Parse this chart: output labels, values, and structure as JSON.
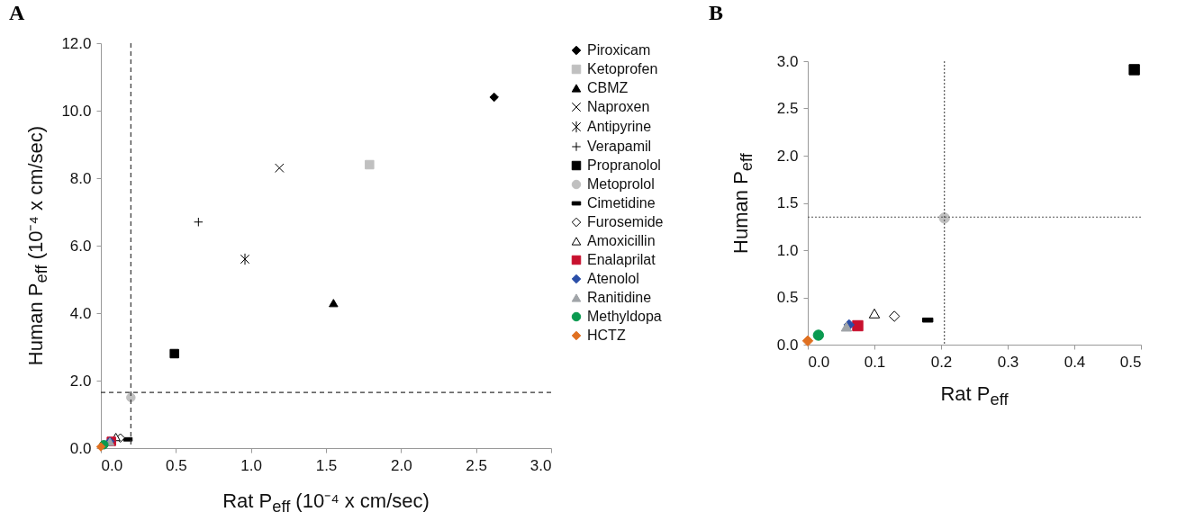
{
  "chart_data": [
    {
      "type": "scatter",
      "title": "A",
      "xlabel": "Rat  P$_{eff}$  (10⁻⁴ x cm/sec)",
      "ylabel": "Human  P$_{eff}$  (10⁻⁴ x cm/sec)",
      "xlim": [
        0,
        3
      ],
      "ylim": [
        0,
        12
      ],
      "xticks": [
        {
          "value": 0,
          "label": "0.0"
        },
        {
          "value": 0.5,
          "label": "0.5"
        },
        {
          "value": 1,
          "label": "1.0"
        },
        {
          "value": 1.5,
          "label": "1.5"
        },
        {
          "value": 2,
          "label": "2.0"
        },
        {
          "value": 2.5,
          "label": "2.5"
        },
        {
          "value": 3,
          "label": "3.0"
        }
      ],
      "yticks": [
        {
          "value": 0,
          "label": "0.0"
        },
        {
          "value": 2,
          "label": "2.0"
        },
        {
          "value": 4,
          "label": "4.0"
        },
        {
          "value": 6,
          "label": "6.0"
        },
        {
          "value": 8,
          "label": "8.0"
        },
        {
          "value": 10,
          "label": "10.0"
        },
        {
          "value": 12,
          "label": "12.0"
        }
      ],
      "legend": "right",
      "grid": false,
      "ref_lines": [
        {
          "axis": "x",
          "value": 0.2,
          "color": "#333333",
          "line_style": "dashed"
        },
        {
          "axis": "y",
          "value": 1.65,
          "color": "#333333",
          "line_style": "dashed"
        }
      ],
      "series": [
        {
          "name": "Piroxicam",
          "color": "#000000",
          "marker": "diamond",
          "x": [
            2.62
          ],
          "values": [
            10.4
          ]
        },
        {
          "name": "Ketoprofen",
          "color": "#c0c0c0",
          "marker": "square",
          "x": [
            1.79
          ],
          "values": [
            8.4
          ]
        },
        {
          "name": "CBMZ",
          "color": "#000000",
          "marker": "triangle",
          "x": [
            1.55
          ],
          "values": [
            4.3
          ]
        },
        {
          "name": "Naproxen",
          "color": "#000000",
          "marker": "x",
          "x": [
            1.19
          ],
          "values": [
            8.3
          ]
        },
        {
          "name": "Antipyrine",
          "color": "#000000",
          "marker": "cross",
          "x": [
            0.96
          ],
          "values": [
            5.6
          ]
        },
        {
          "name": "Verapamil",
          "color": "#000000",
          "marker": "plus",
          "x": [
            0.65
          ],
          "values": [
            6.7
          ]
        },
        {
          "name": "Propranolol",
          "color": "#000000",
          "marker": "square",
          "x": [
            0.49
          ],
          "values": [
            2.8
          ]
        },
        {
          "name": "Metoprolol",
          "color": "#c0c0c0",
          "marker": "circle",
          "x": [
            0.2
          ],
          "values": [
            1.5
          ]
        },
        {
          "name": "Cimetidine",
          "color": "#000000",
          "x": [
            0.18
          ],
          "values": [
            0.26
          ]
        },
        {
          "name": "Furosemide",
          "color": "#ffffff",
          "marker": "diamond",
          "x": [
            0.13
          ],
          "values": [
            0.3
          ]
        },
        {
          "name": "Amoxicillin",
          "color": "#ffffff",
          "marker": "triangle",
          "x": [
            0.1
          ],
          "values": [
            0.33
          ]
        },
        {
          "name": "Enalaprilat",
          "color": "#c8102e",
          "marker": "square",
          "x": [
            0.07
          ],
          "values": [
            0.2
          ]
        },
        {
          "name": "Atenolol",
          "color": "#2a4ea8",
          "marker": "diamond",
          "x": [
            0.06
          ],
          "values": [
            0.2
          ]
        },
        {
          "name": "Ranitidine",
          "color": "#a0a4a8",
          "marker": "triangle",
          "x": [
            0.06
          ],
          "values": [
            0.19
          ]
        },
        {
          "name": "Methyldopa",
          "color": "#0a9a50",
          "marker": "circle",
          "x": [
            0.02
          ],
          "values": [
            0.1
          ]
        },
        {
          "name": "HCTZ",
          "color": "#e07020",
          "marker": "diamond",
          "x": [
            0.0
          ],
          "values": [
            0.04
          ]
        }
      ]
    },
    {
      "type": "scatter",
      "title": "B",
      "xlabel": "Rat  P$_{eff}$",
      "ylabel": "Human P$_{eff}$",
      "xlim": [
        0,
        0.5
      ],
      "ylim": [
        0,
        3
      ],
      "xticks": [
        {
          "value": 0,
          "label": "0.0"
        },
        0.1,
        0.2,
        0.3,
        0.4,
        0.5
      ],
      "yticks": [
        {
          "value": 0,
          "label": "0.0"
        },
        0.5,
        {
          "value": 1,
          "label": "1.0"
        },
        1.5,
        {
          "value": 2,
          "label": "2.0"
        },
        2.5,
        {
          "value": 3,
          "label": "3.0"
        }
      ],
      "grid": false,
      "ref_lines": [
        {
          "axis": "x",
          "value": 0.205,
          "color": "#555555",
          "line_style": "dotted"
        },
        {
          "axis": "y",
          "value": 1.35,
          "color": "#555555",
          "line_style": "dotted"
        }
      ],
      "series": [
        {
          "color": "#000000",
          "marker": "square",
          "x": [
            0.49
          ],
          "values": [
            2.91
          ]
        },
        {
          "color": "#c0c0c0",
          "marker": "circle",
          "x": [
            0.205
          ],
          "values": [
            1.34
          ]
        },
        {
          "color": "#000000",
          "x": [
            0.18
          ],
          "values": [
            0.26
          ]
        },
        {
          "color": "#ffffff",
          "marker": "diamond",
          "x": [
            0.13
          ],
          "values": [
            0.3
          ]
        },
        {
          "color": "#ffffff",
          "marker": "triangle",
          "x": [
            0.1
          ],
          "values": [
            0.33
          ]
        },
        {
          "color": "#c8102e",
          "marker": "square",
          "x": [
            0.075
          ],
          "values": [
            0.2
          ]
        },
        {
          "color": "#2a4ea8",
          "marker": "diamond",
          "x": [
            0.062
          ],
          "values": [
            0.21
          ]
        },
        {
          "color": "#a0a4a8",
          "marker": "triangle",
          "x": [
            0.058
          ],
          "values": [
            0.19
          ]
        },
        {
          "color": "#0a9a50",
          "marker": "circle",
          "x": [
            0.016
          ],
          "values": [
            0.1
          ]
        },
        {
          "color": "#e07020",
          "marker": "diamond",
          "x": [
            0.0
          ],
          "values": [
            0.04
          ]
        }
      ]
    }
  ]
}
